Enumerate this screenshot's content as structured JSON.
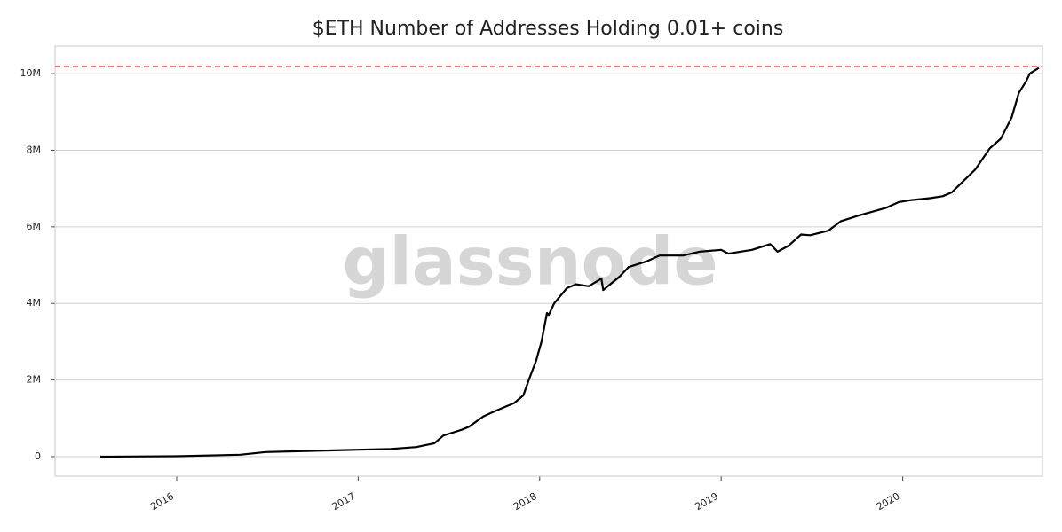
{
  "chart_data": {
    "type": "line",
    "title": "$ETH Number of Addresses Holding 0.01+ coins",
    "watermark": "glassnode",
    "x": [
      2015.58,
      2016.0,
      2016.35,
      2016.49,
      2016.74,
      2017.0,
      2017.18,
      2017.32,
      2017.42,
      2017.47,
      2017.57,
      2017.61,
      2017.69,
      2017.76,
      2017.86,
      2017.91,
      2017.94,
      2017.98,
      2018.01,
      2018.04,
      2018.05,
      2018.08,
      2018.15,
      2018.2,
      2018.27,
      2018.34,
      2018.35,
      2018.44,
      2018.49,
      2018.59,
      2018.66,
      2018.79,
      2018.88,
      2019.0,
      2019.04,
      2019.17,
      2019.27,
      2019.31,
      2019.37,
      2019.44,
      2019.49,
      2019.59,
      2019.66,
      2019.76,
      2019.91,
      2019.98,
      2020.05,
      2020.15,
      2020.22,
      2020.27,
      2020.4,
      2020.48,
      2020.54,
      2020.6,
      2020.64,
      2020.68,
      2020.7,
      2020.75
    ],
    "values": [
      0,
      10000,
      50000,
      120000,
      150000,
      180000,
      200000,
      250000,
      350000,
      550000,
      700000,
      780000,
      1050000,
      1200000,
      1400000,
      1600000,
      2000000,
      2500000,
      3000000,
      3750000,
      3700000,
      4000000,
      4400000,
      4500000,
      4450000,
      4650000,
      4350000,
      4700000,
      4950000,
      5100000,
      5250000,
      5250000,
      5350000,
      5400000,
      5300000,
      5400000,
      5550000,
      5350000,
      5500000,
      5800000,
      5780000,
      5900000,
      6150000,
      6300000,
      6500000,
      6650000,
      6700000,
      6750000,
      6800000,
      6900000,
      7500000,
      8050000,
      8300000,
      8850000,
      9500000,
      9800000,
      10000000,
      10150000
    ],
    "color": "#000000",
    "hline": 10190000,
    "hline_color": "#e03030",
    "xlim": [
      2015.33,
      2020.77
    ],
    "xticks": [
      2016,
      2017,
      2018,
      2019,
      2020
    ],
    "ylim": [
      -510000,
      10720000
    ],
    "yticks": [
      0,
      {
        "value": 2000000,
        "label": "2M"
      },
      {
        "value": 4000000,
        "label": "4M"
      },
      {
        "value": 6000000,
        "label": "6M"
      },
      {
        "value": 8000000,
        "label": "8M"
      },
      {
        "value": 10000000,
        "label": "10M"
      }
    ],
    "grid": true
  }
}
